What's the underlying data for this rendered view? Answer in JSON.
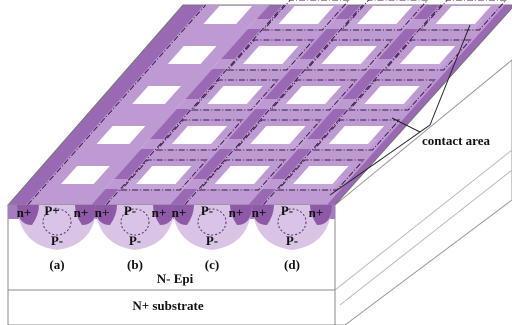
{
  "regions": [
    {
      "label": "(a)",
      "top": [
        "n+",
        "P+",
        "n+"
      ],
      "bottom": "P-"
    },
    {
      "label": "(b)",
      "top": [
        "n+",
        "P-",
        "n+"
      ],
      "bottom": "P-"
    },
    {
      "label": "(c)",
      "top": [
        "n+",
        "P-",
        "n+"
      ],
      "bottom": "P-"
    },
    {
      "label": "(d)",
      "top": [
        "n+",
        "P-",
        "n+"
      ],
      "bottom": "P-"
    }
  ],
  "epi_label": "N- Epi",
  "substrate_label": "N+ substrate",
  "annotation": "contact area"
}
